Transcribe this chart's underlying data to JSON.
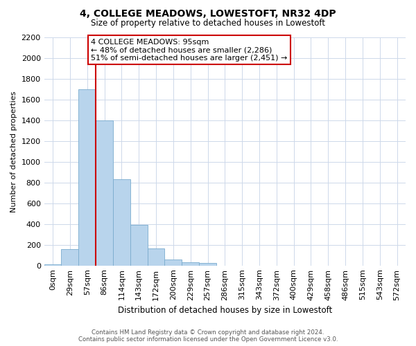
{
  "title": "4, COLLEGE MEADOWS, LOWESTOFT, NR32 4DP",
  "subtitle": "Size of property relative to detached houses in Lowestoft",
  "bar_labels": [
    "0sqm",
    "29sqm",
    "57sqm",
    "86sqm",
    "114sqm",
    "143sqm",
    "172sqm",
    "200sqm",
    "229sqm",
    "257sqm",
    "286sqm",
    "315sqm",
    "343sqm",
    "372sqm",
    "400sqm",
    "429sqm",
    "458sqm",
    "486sqm",
    "515sqm",
    "543sqm",
    "572sqm"
  ],
  "bar_values": [
    10,
    155,
    1700,
    1400,
    830,
    390,
    165,
    60,
    30,
    25,
    0,
    0,
    0,
    0,
    0,
    0,
    0,
    0,
    0,
    0,
    0
  ],
  "bar_color": "#b8d4ec",
  "bar_edge_color": "#7aabce",
  "vline_x": 3.0,
  "vline_color": "#cc0000",
  "ylabel": "Number of detached properties",
  "xlabel": "Distribution of detached houses by size in Lowestoft",
  "ylim": [
    0,
    2200
  ],
  "yticks": [
    0,
    200,
    400,
    600,
    800,
    1000,
    1200,
    1400,
    1600,
    1800,
    2000,
    2200
  ],
  "annotation_title": "4 COLLEGE MEADOWS: 95sqm",
  "annotation_line1": "← 48% of detached houses are smaller (2,286)",
  "annotation_line2": "51% of semi-detached houses are larger (2,451) →",
  "footer_line1": "Contains HM Land Registry data © Crown copyright and database right 2024.",
  "footer_line2": "Contains public sector information licensed under the Open Government Licence v3.0.",
  "background_color": "#ffffff",
  "grid_color": "#cdd8ea"
}
